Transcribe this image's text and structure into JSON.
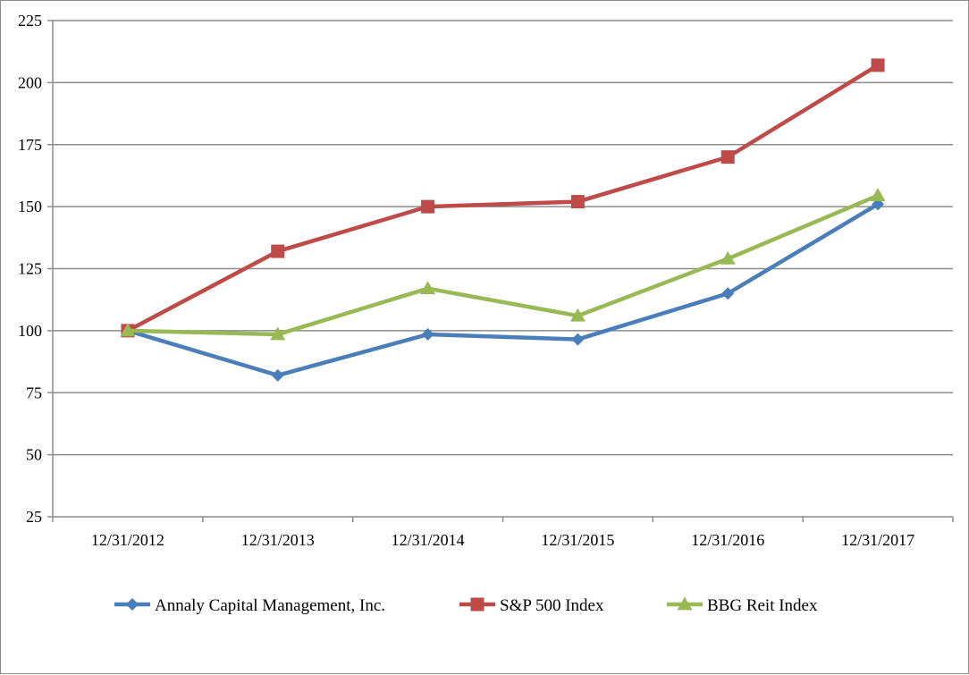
{
  "chart_data": {
    "type": "line",
    "title": "",
    "xlabel": "",
    "ylabel": "",
    "categories": [
      "12/31/2012",
      "12/31/2013",
      "12/31/2014",
      "12/31/2015",
      "12/31/2016",
      "12/31/2017"
    ],
    "ylim": [
      25,
      225
    ],
    "yticks": [
      25,
      50,
      75,
      100,
      125,
      150,
      175,
      200,
      225
    ],
    "grid": true,
    "legend_position": "bottom",
    "series": [
      {
        "name": "Annaly Capital Management, Inc.",
        "color": "#4a7ebb",
        "marker": "diamond",
        "values": [
          100,
          82,
          98.5,
          96.5,
          115,
          151
        ]
      },
      {
        "name": "S&P 500 Index",
        "color": "#be4b48",
        "marker": "square",
        "values": [
          100,
          132,
          150,
          152,
          170,
          207
        ]
      },
      {
        "name": "BBG Reit Index",
        "color": "#98b954",
        "marker": "triangle",
        "values": [
          100,
          98.5,
          117,
          106,
          129,
          154.5
        ]
      }
    ]
  }
}
